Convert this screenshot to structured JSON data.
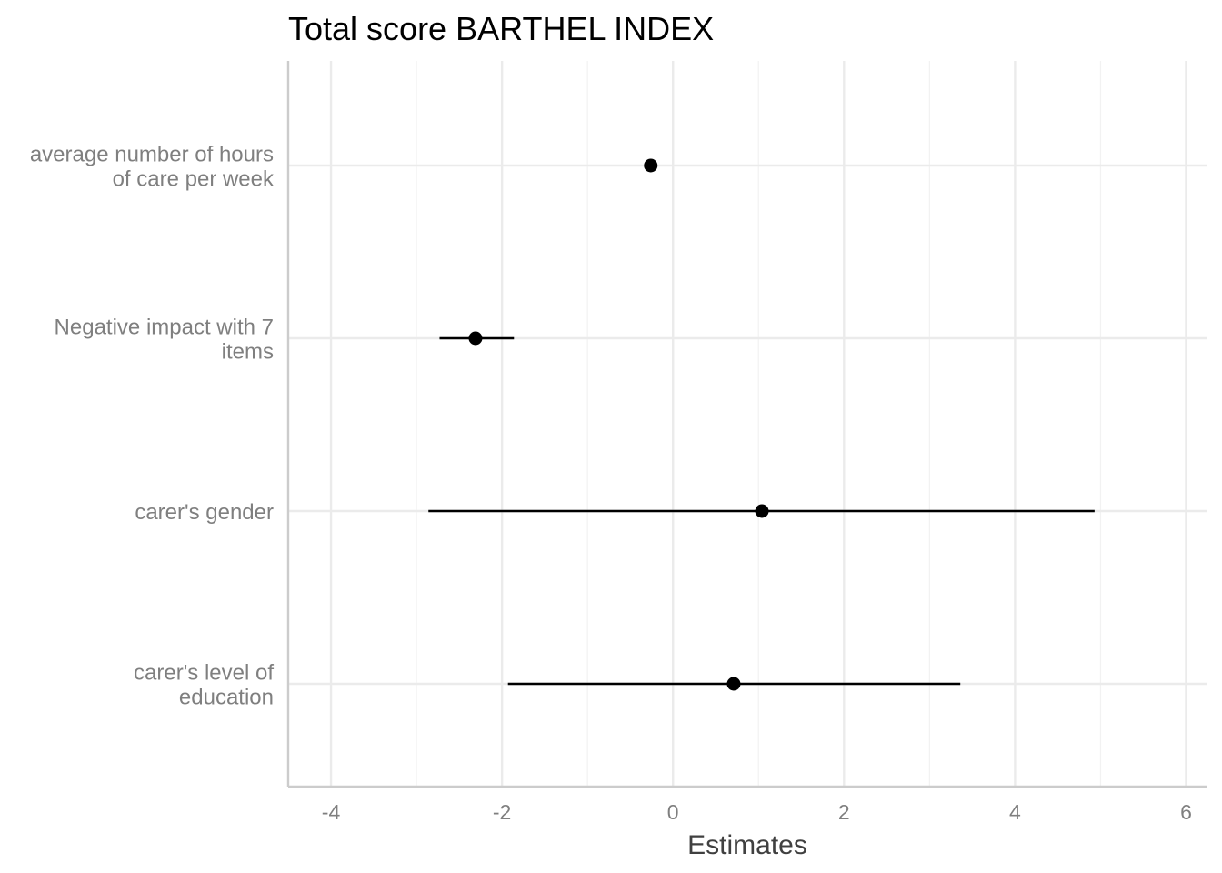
{
  "chart_data": {
    "type": "forest",
    "title": "Total score BARTHEL INDEX",
    "xlabel": "Estimates",
    "ylabel": "",
    "xlim": [
      -4.5,
      6.25
    ],
    "x_ticks": [
      "-4",
      "-2",
      "0",
      "2",
      "4",
      "6"
    ],
    "x_tick_values": [
      -4,
      -2,
      0,
      2,
      4,
      6
    ],
    "grid": true,
    "colors": {
      "point": "#000000",
      "grid_major": "#ebebeb",
      "grid_minor": "#f2f2f2",
      "axis": "#cccccc"
    },
    "terms": [
      {
        "label_lines": [
          "average number of hours",
          "of care per week"
        ],
        "estimate": -0.26,
        "ci_low": -0.26,
        "ci_high": -0.26
      },
      {
        "label_lines": [
          "Negative impact with 7",
          "items"
        ],
        "estimate": -2.31,
        "ci_low": -2.73,
        "ci_high": -1.86
      },
      {
        "label_lines": [
          "carer's gender"
        ],
        "estimate": 1.04,
        "ci_low": -2.86,
        "ci_high": 4.93
      },
      {
        "label_lines": [
          "carer's level of",
          "education"
        ],
        "estimate": 0.71,
        "ci_low": -1.93,
        "ci_high": 3.36
      }
    ]
  }
}
